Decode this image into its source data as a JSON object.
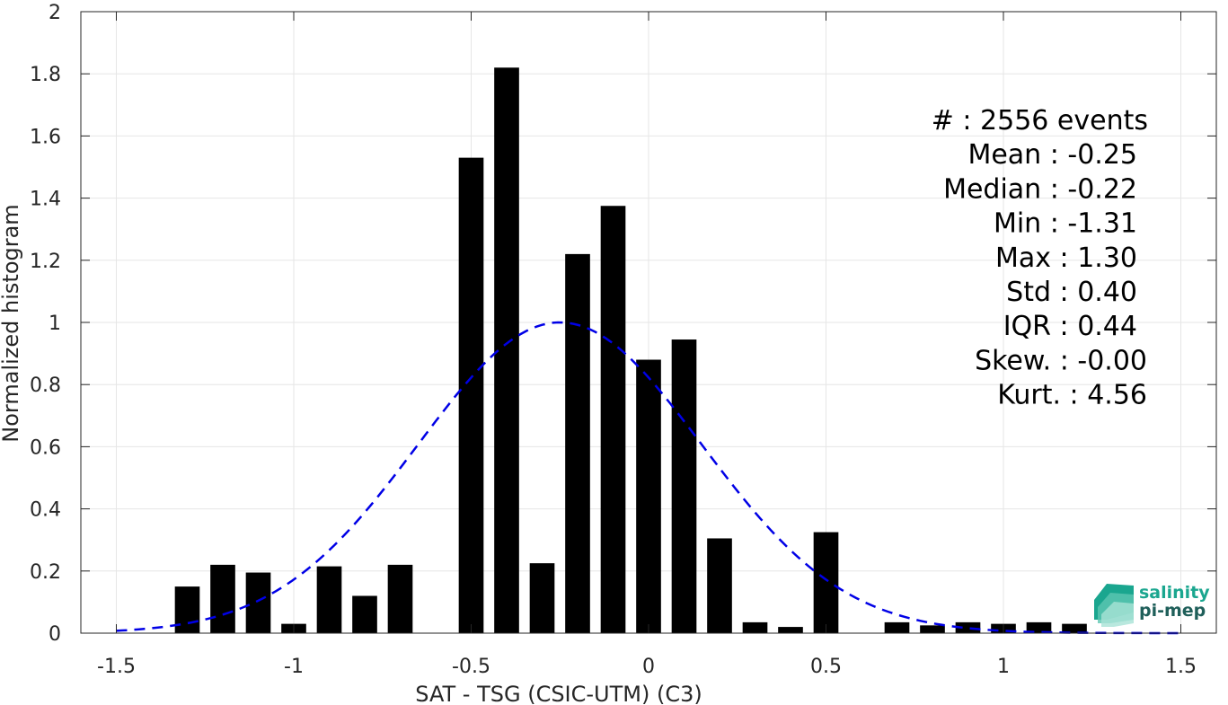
{
  "chart_data": {
    "type": "bar",
    "xlabel": "SAT - TSG (CSIC-UTM) (C3)",
    "ylabel": "Normalized histogram",
    "xlim": [
      -1.6,
      1.6
    ],
    "ylim": [
      0,
      2
    ],
    "xticks": [
      -1.5,
      -1,
      -0.5,
      0,
      0.5,
      1,
      1.5
    ],
    "xtick_labels": [
      "-1.5",
      "-1",
      "-0.5",
      "0",
      "0.5",
      "1",
      "1.5"
    ],
    "yticks": [
      0,
      0.2,
      0.4,
      0.6,
      0.8,
      1,
      1.2,
      1.4,
      1.6,
      1.8,
      2
    ],
    "ytick_labels": [
      "0",
      "0.2",
      "0.4",
      "0.6",
      "0.8",
      "1",
      "1.2",
      "1.4",
      "1.6",
      "1.8",
      "2"
    ],
    "grid": true,
    "bar_width": 0.07,
    "bar_color": "#000000",
    "bars": {
      "x": [
        -1.3,
        -1.2,
        -1.1,
        -1.0,
        -0.9,
        -0.8,
        -0.7,
        -0.5,
        -0.4,
        -0.3,
        -0.2,
        -0.1,
        0.0,
        0.1,
        0.2,
        0.3,
        0.4,
        0.5,
        0.7,
        0.8,
        0.9,
        1.0,
        1.1,
        1.2
      ],
      "values": [
        0.15,
        0.22,
        0.195,
        0.03,
        0.215,
        0.12,
        0.22,
        1.53,
        1.82,
        0.225,
        1.22,
        1.375,
        0.88,
        0.945,
        0.305,
        0.035,
        0.02,
        0.325,
        0.035,
        0.025,
        0.035,
        0.03,
        0.035,
        0.03
      ]
    },
    "fit_curve": {
      "style": "dashed",
      "color": "#0000e6",
      "mean": -0.25,
      "std": 0.4,
      "peak": 1.0,
      "x_range": [
        -1.5,
        1.5
      ]
    },
    "stats_lines": [
      "#  : 2556 events",
      "Mean : -0.25",
      "Median : -0.22",
      "Min : -1.31",
      "Max : 1.30",
      "Std : 0.40",
      "IQR : 0.44",
      "Skew. : -0.00",
      "Kurt. : 4.56"
    ]
  },
  "logo": {
    "line1": "salinity",
    "line2": "pi-mep",
    "color1": "#1aa68f",
    "color2": "#1f5f5a"
  }
}
